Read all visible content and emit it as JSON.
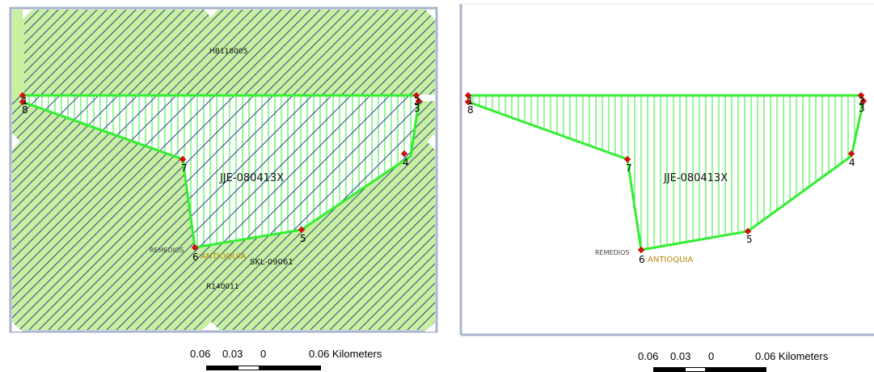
{
  "left_map": {
    "parcel_id": "JJE-080413X",
    "labels": {
      "top_parcel": "HB118005",
      "bottom_parcel": "R140011",
      "adjacent": "SKL-09061",
      "municipality": "REMEDIOS",
      "department": "ANTIOQUIA"
    },
    "vertices": [
      "1",
      "8",
      "2",
      "3",
      "4",
      "5",
      "6",
      "7"
    ]
  },
  "right_map": {
    "parcel_id": "JJE-080413X",
    "labels": {
      "municipality": "REMEDIOS",
      "department": "ANTIOQUIA"
    },
    "vertices": [
      "1",
      "8",
      "2",
      "3",
      "4",
      "5",
      "6",
      "7"
    ]
  },
  "scale_left": {
    "ticks": [
      "0.06",
      "0.03",
      "0"
    ],
    "end_label": "0.06 Kilometers"
  },
  "scale_right": {
    "ticks": [
      "0.06",
      "0.03",
      "0"
    ],
    "end_label": "0.06 Kilometers"
  },
  "colors": {
    "fill_green": "#c9f0a0",
    "polygon_stroke": "#33ee33",
    "hatch_blue": "#2a4a8a",
    "vertex_red": "#d01010",
    "frame": "#a9b4cc",
    "department_text": "#b8860b"
  }
}
